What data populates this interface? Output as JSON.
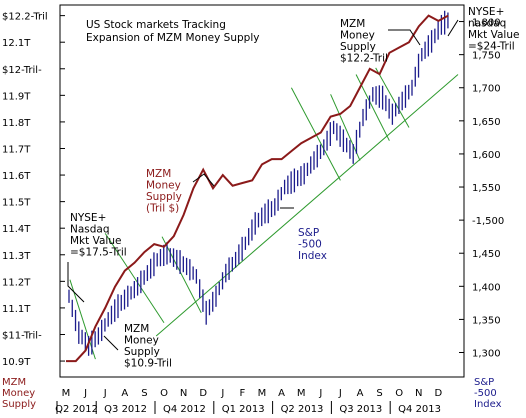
{
  "chart_data": {
    "type": "line",
    "title": "US Stock markets Tracking\nExpansion of MZM Money Supply",
    "x_labels": [
      "M",
      "J",
      "J",
      "A",
      "S",
      "O",
      "N",
      "D",
      "J",
      "F",
      "M",
      "A",
      "M",
      "J",
      "J",
      "A",
      "S",
      "O",
      "N",
      "D"
    ],
    "quarter_labels": [
      "Q2 2012",
      "Q3 2012",
      "Q4 2012",
      "Q1 2013",
      "Q2 2013",
      "Q3 2013",
      "Q4 2013"
    ],
    "left_axis": {
      "label": "MZM\nMoney\nSupply",
      "ylim": [
        10.84,
        12.24
      ],
      "ticks": [
        {
          "v": 10.9,
          "label": "10.9T"
        },
        {
          "v": 11.0,
          "label": "$11-Tril-"
        },
        {
          "v": 11.1,
          "label": "11.1T"
        },
        {
          "v": 11.2,
          "label": "11.2T"
        },
        {
          "v": 11.3,
          "label": "11.3T"
        },
        {
          "v": 11.4,
          "label": "11.4T"
        },
        {
          "v": 11.5,
          "label": "11.5T"
        },
        {
          "v": 11.6,
          "label": "11.6T"
        },
        {
          "v": 11.7,
          "label": "11.7T"
        },
        {
          "v": 11.8,
          "label": "11.8T"
        },
        {
          "v": 11.9,
          "label": "11.9T"
        },
        {
          "v": 12.0,
          "label": "$12-Tril-"
        },
        {
          "v": 12.1,
          "label": "12.1T"
        },
        {
          "v": 12.2,
          "label": "$12.2-Tril"
        }
      ]
    },
    "right_axis": {
      "label": "S&P\n-500\nIndex",
      "ylim": [
        1263,
        1825
      ],
      "ticks": [
        {
          "v": 1300,
          "label": "1,300"
        },
        {
          "v": 1350,
          "label": "1,350"
        },
        {
          "v": 1400,
          "label": "1,400"
        },
        {
          "v": 1450,
          "label": "1,450"
        },
        {
          "v": 1500,
          "label": "-1,500"
        },
        {
          "v": 1550,
          "label": "1,550"
        },
        {
          "v": 1600,
          "label": "1,600"
        },
        {
          "v": 1650,
          "label": "1,650"
        },
        {
          "v": 1700,
          "label": "1,700"
        },
        {
          "v": 1750,
          "label": "1,750"
        },
        {
          "v": 1800,
          "label": "1,800"
        }
      ]
    },
    "series": [
      {
        "name": "MZM Money Supply",
        "axis": "left",
        "color": "#8b1a1a",
        "x": [
          0,
          0.5,
          1,
          1.5,
          2,
          2.5,
          3,
          3.5,
          4,
          4.5,
          5,
          5.5,
          6,
          6.5,
          7,
          7.5,
          8,
          8.5,
          9,
          9.5,
          10,
          10.5,
          11,
          11.5,
          12,
          12.5,
          13,
          13.5,
          14,
          14.5,
          15,
          15.5,
          16,
          16.5,
          17,
          17.5,
          18,
          18.5,
          19,
          19.5
        ],
        "values": [
          10.9,
          10.9,
          10.94,
          11.03,
          11.1,
          11.18,
          11.24,
          11.27,
          11.31,
          11.34,
          11.33,
          11.37,
          11.45,
          11.55,
          11.62,
          11.55,
          11.6,
          11.56,
          11.57,
          11.58,
          11.64,
          11.66,
          11.66,
          11.69,
          11.72,
          11.74,
          11.76,
          11.82,
          11.83,
          11.86,
          11.93,
          12.0,
          11.98,
          12.06,
          12.08,
          12.1,
          12.16,
          12.2,
          12.18,
          12.2
        ]
      },
      {
        "name": "S&P-500 Index",
        "axis": "right",
        "color": "#1c1c8c",
        "x": [
          0,
          0.5,
          1,
          1.5,
          2,
          2.5,
          3,
          3.5,
          4,
          4.5,
          5,
          5.5,
          6,
          6.5,
          7,
          7.5,
          8,
          8.5,
          9,
          9.5,
          10,
          10.5,
          11,
          11.5,
          12,
          12.5,
          13,
          13.5,
          14,
          14.5,
          15,
          15.5,
          16,
          16.5,
          17,
          17.5,
          18,
          18.5,
          19,
          19.5
        ],
        "values": [
          1385,
          1330,
          1310,
          1325,
          1350,
          1370,
          1385,
          1400,
          1420,
          1440,
          1450,
          1440,
          1430,
          1415,
          1360,
          1385,
          1420,
          1440,
          1465,
          1495,
          1510,
          1520,
          1550,
          1560,
          1570,
          1590,
          1610,
          1640,
          1620,
          1600,
          1655,
          1690,
          1685,
          1660,
          1680,
          1700,
          1750,
          1770,
          1795,
          1805
        ]
      }
    ],
    "trendline": {
      "x": [
        4.6,
        20
      ],
      "values": [
        1325,
        1720
      ],
      "axis": "right",
      "color": "#2e9a2e"
    },
    "annotations": [
      "MZM\nMoney\nSupply\n$12.2-Tril",
      "NYSE+\nnasdaq\nMkt Value\n=$24-Tril",
      "MZM\nMoney\nSupply\n(Tril $)",
      "S&P\n-500\nIndex",
      "NYSE+\nNasdaq\nMkt Value\n=$17.5-Tril",
      "MZM\nMoney\nSupply\n$10.9-Tril"
    ],
    "grid": false,
    "legend": "none"
  }
}
